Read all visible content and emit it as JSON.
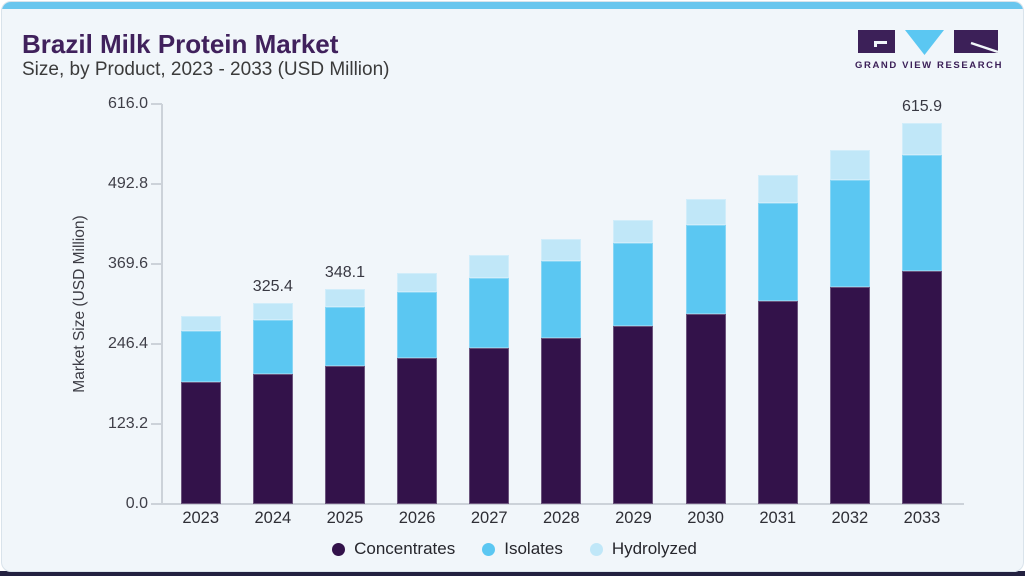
{
  "header": {
    "title": "Brazil Milk Protein Market",
    "subtitle": "Size, by Product, 2023 - 2033 (USD Million)"
  },
  "logo": {
    "text": "GRAND VIEW RESEARCH",
    "purple": "#3c2058",
    "blue": "#5bc7f2"
  },
  "colors": {
    "card_background": "#f1f6fa",
    "top_accent": "#69c6ee",
    "bottom_accent": "#232140",
    "axis_line": "#ccd2d9",
    "title_text": "#40215c"
  },
  "chart_data": {
    "type": "bar",
    "stacked": true,
    "title": "Brazil Milk Protein Market Size, by Product, 2023 - 2033 (USD Million)",
    "xlabel": "",
    "ylabel": "Market Size (USD Million)",
    "ylim": [
      0,
      616.0
    ],
    "y_ticks": [
      "616.0",
      "492.8",
      "369.6",
      "246.4",
      "123.2",
      "0.0"
    ],
    "grid": false,
    "legend_position": "bottom",
    "categories": [
      "2023",
      "2024",
      "2025",
      "2026",
      "2027",
      "2028",
      "2029",
      "2030",
      "2031",
      "2032",
      "2033"
    ],
    "series": [
      {
        "name": "Concentrates",
        "color": "#33124a",
        "values": [
          197.5,
          210.1,
          223.0,
          236.0,
          252.5,
          269.0,
          287.5,
          306.5,
          327.5,
          350.5,
          375.9
        ]
      },
      {
        "name": "Isolates",
        "color": "#5bc7f2",
        "values": [
          82.5,
          87.4,
          95.5,
          106.5,
          113.0,
          124.5,
          134.5,
          145.0,
          159.0,
          173.5,
          189.0
        ]
      },
      {
        "name": "Hydrolyzed",
        "color": "#c0e7f8",
        "values": [
          24.0,
          27.9,
          29.6,
          31.0,
          36.5,
          35.5,
          37.5,
          42.0,
          46.0,
          47.5,
          51.0
        ]
      }
    ],
    "bar_total_labels": [
      {
        "category": "2024",
        "label": "325.4"
      },
      {
        "category": "2025",
        "label": "348.1"
      },
      {
        "category": "2033",
        "label": "615.9"
      }
    ]
  }
}
